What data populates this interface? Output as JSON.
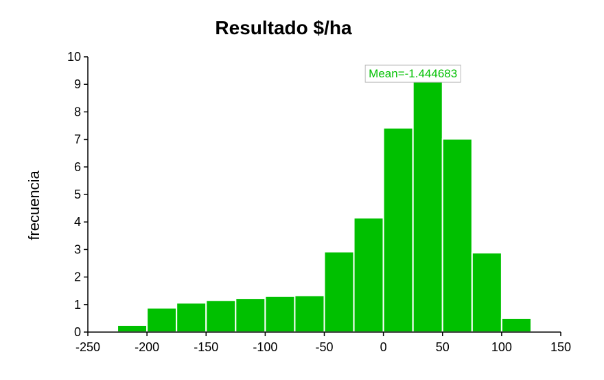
{
  "chart_data": {
    "type": "bar",
    "title": "Resultado $/ha",
    "xlabel": "",
    "ylabel": "frecuencia",
    "xlim": [
      -250,
      150
    ],
    "ylim": [
      0,
      10
    ],
    "xticks": [
      -250,
      -200,
      -150,
      -100,
      -50,
      0,
      50,
      100,
      150
    ],
    "yticks": [
      0,
      1,
      2,
      3,
      4,
      5,
      6,
      7,
      8,
      9,
      10
    ],
    "bin_width": 25,
    "bins": [
      {
        "x0": -225,
        "x1": -200,
        "value": 0.25
      },
      {
        "x0": -200,
        "x1": -175,
        "value": 0.88
      },
      {
        "x0": -175,
        "x1": -150,
        "value": 1.06
      },
      {
        "x0": -150,
        "x1": -125,
        "value": 1.15
      },
      {
        "x0": -125,
        "x1": -100,
        "value": 1.22
      },
      {
        "x0": -100,
        "x1": -75,
        "value": 1.3
      },
      {
        "x0": -75,
        "x1": -50,
        "value": 1.33
      },
      {
        "x0": -50,
        "x1": -25,
        "value": 2.92
      },
      {
        "x0": -25,
        "x1": 0,
        "value": 4.15
      },
      {
        "x0": 0,
        "x1": 25,
        "value": 7.42
      },
      {
        "x0": 25,
        "x1": 50,
        "value": 9.25
      },
      {
        "x0": 50,
        "x1": 75,
        "value": 7.02
      },
      {
        "x0": 75,
        "x1": 100,
        "value": 2.88
      },
      {
        "x0": 100,
        "x1": 125,
        "value": 0.5
      }
    ],
    "grid": false,
    "annotation": {
      "text": "Mean=-1.444683",
      "x": 25,
      "y": 9.4,
      "color": "#00c000"
    },
    "bar_color": "#00c000",
    "bar_edge_color": "#ffffff"
  }
}
